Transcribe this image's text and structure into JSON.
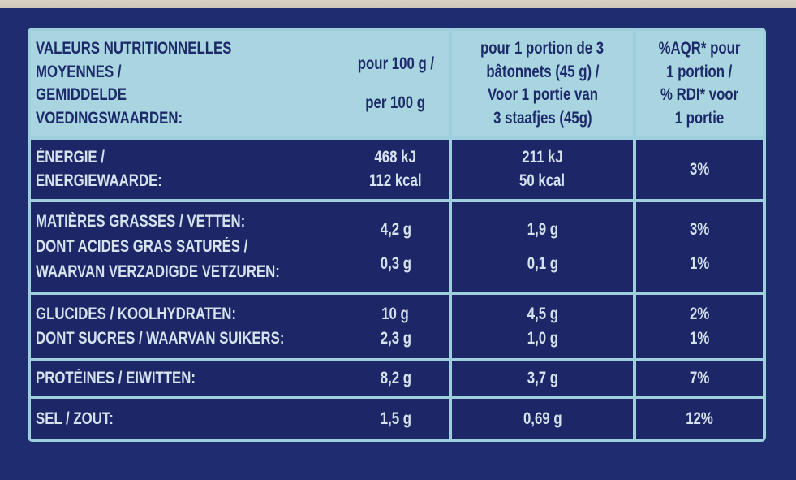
{
  "header": [
    "VALEURS NUTRITIONNELLES MOYENNES / GEMIDDELDE VOEDINGSWAARDEN:",
    "pour 100 g / per 100 g",
    "pour 1 portion de 3 bâtonnets (45 g) / Voor 1 portie van 3 staafjes (45g)",
    "%AQR* pour 1 portion / % RDI* voor 1 portie"
  ],
  "header_lines": [
    [
      "VALEURS NUTRITIONNELLES",
      "MOYENNES /",
      "GEMIDDELDE",
      "VOEDINGSWAARDEN:"
    ],
    [
      "pour 100 g /",
      "per 100 g"
    ],
    [
      "pour 1 portion de 3",
      "bâtonnets (45 g) /",
      "Voor 1 portie van",
      "3 staafjes (45g)"
    ],
    [
      "%AQR* pour",
      "1 portion /",
      "% RDI* voor",
      "1 portie"
    ]
  ],
  "rows": [
    [
      [
        "ÉNERGIE /",
        "ENERGIEWAARDE:"
      ],
      [
        "468 kJ",
        "112 kcal"
      ],
      [
        "211 kJ",
        "50 kcal"
      ],
      [
        "3%"
      ]
    ],
    [
      [
        "MATIÈRES GRASSES / VETTEN:",
        "DONT ACIDES GRAS SATURÉS /",
        "WAARVAN VERZADIGDE VETZUREN:"
      ],
      [
        "4,2 g",
        "0,3 g"
      ],
      [
        "1,9 g",
        "0,1 g"
      ],
      [
        "3%",
        "1%"
      ]
    ],
    [
      [
        "GLUCIDES / KOOLHYDRATEN:",
        "DONT SUCRES / WAARVAN SUIKERS:"
      ],
      [
        "10 g",
        "2,3 g"
      ],
      [
        "4,5 g",
        "1,0 g"
      ],
      [
        "2%",
        "1%"
      ]
    ],
    [
      [
        "PROTÉINES / EIWITTEN:"
      ],
      [
        "8,2 g"
      ],
      [
        "3,7 g"
      ],
      [
        "7%"
      ]
    ],
    [
      [
        "SEL / ZOUT:"
      ],
      [
        "1,5 g"
      ],
      [
        "0,69 g"
      ],
      [
        "12%"
      ]
    ]
  ]
}
